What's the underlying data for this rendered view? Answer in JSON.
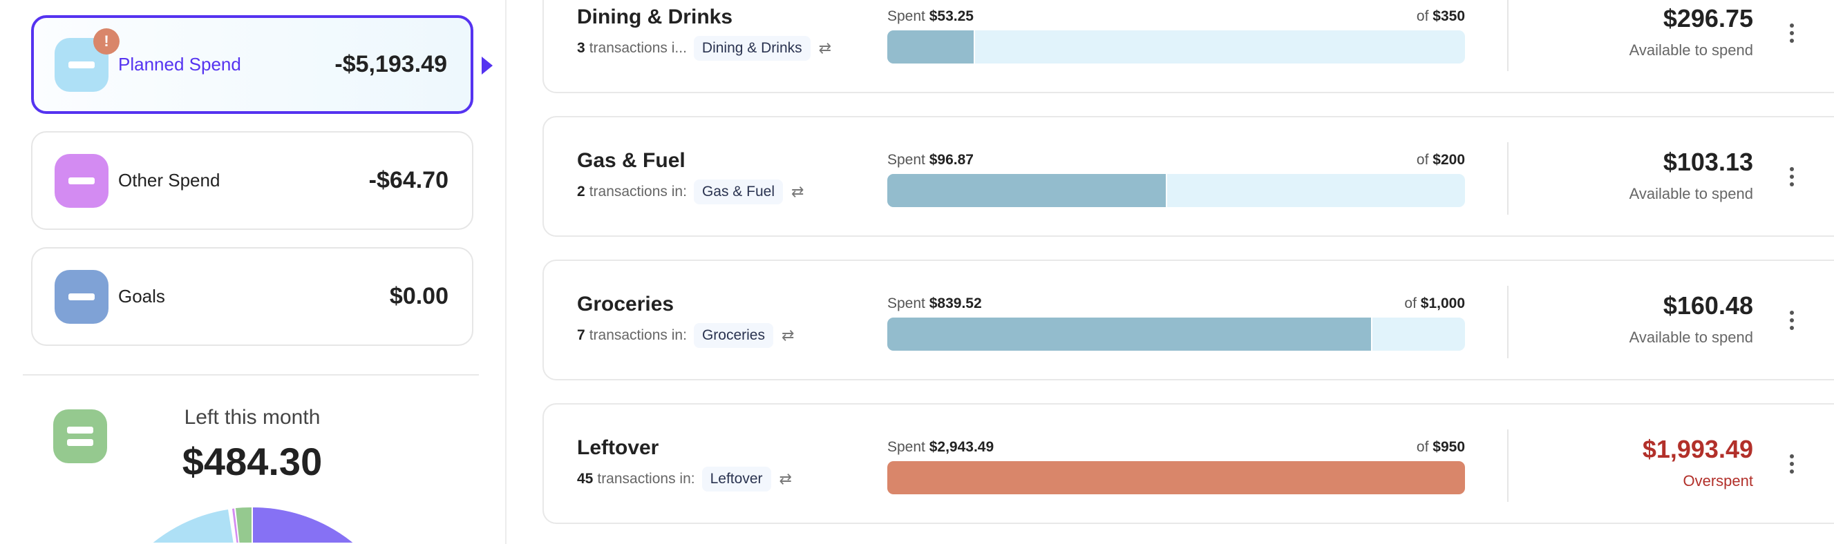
{
  "summary": [
    {
      "label": "Planned Spend",
      "amount": "-$5,193.49",
      "color": "#aee0f6",
      "alert": "!",
      "active": true
    },
    {
      "label": "Other Spend",
      "amount": "-$64.70",
      "color": "#d38bf2",
      "active": false
    },
    {
      "label": "Goals",
      "amount": "$0.00",
      "color": "#7fa2d6",
      "active": false
    }
  ],
  "left_this_month": {
    "label": "Left this month",
    "amount": "$484.30",
    "color": "#95c98f"
  },
  "pie_colors": {
    "purple": "#8671f4",
    "light_blue": "#aee0f6",
    "green": "#95c98f",
    "pink": "#d38bf2"
  },
  "categories": [
    {
      "title": "Dining & Drinks",
      "count": "3",
      "count_text": "transactions i...",
      "chip": "Dining & Drinks",
      "spent_label": "Spent",
      "spent": "$53.25",
      "of_label": "of",
      "budget": "$350",
      "spent_value": 53.25,
      "budget_value": 350,
      "available": "$296.75",
      "available_label": "Available to spend",
      "overspent": false
    },
    {
      "title": "Gas & Fuel",
      "count": "2",
      "count_text": "transactions in:",
      "chip": "Gas & Fuel",
      "spent_label": "Spent",
      "spent": "$96.87",
      "of_label": "of",
      "budget": "$200",
      "spent_value": 96.87,
      "budget_value": 200,
      "available": "$103.13",
      "available_label": "Available to spend",
      "overspent": false
    },
    {
      "title": "Groceries",
      "count": "7",
      "count_text": "transactions in:",
      "chip": "Groceries",
      "spent_label": "Spent",
      "spent": "$839.52",
      "of_label": "of",
      "budget": "$1,000",
      "spent_value": 839.52,
      "budget_value": 1000,
      "available": "$160.48",
      "available_label": "Available to spend",
      "overspent": false
    },
    {
      "title": "Leftover",
      "count": "45",
      "count_text": "transactions in:",
      "chip": "Leftover",
      "spent_label": "Spent",
      "spent": "$2,943.49",
      "of_label": "of",
      "budget": "$950",
      "spent_value": 2943.49,
      "budget_value": 950,
      "available": "$1,993.49",
      "available_label": "Overspent",
      "overspent": true
    }
  ],
  "colors": {
    "accent": "#5533f0",
    "bar_fill": "#93bccd",
    "bar_track": "#e1f3fb",
    "overspent_bar": "#d9866a",
    "overspent_text": "#b2302a"
  }
}
